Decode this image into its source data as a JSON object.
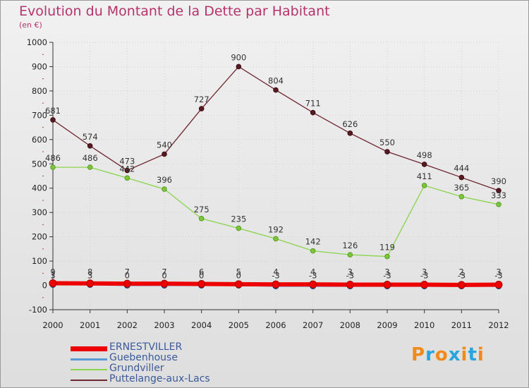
{
  "chart_data": {
    "type": "line",
    "title": "Evolution du Montant de la Dette par Habitant",
    "unit": "(en €)",
    "x": [
      2000,
      2001,
      2002,
      2003,
      2004,
      2005,
      2006,
      2007,
      2008,
      2009,
      2010,
      2011,
      2012
    ],
    "ylim": [
      -100,
      1000
    ],
    "yticks": [
      -100,
      0,
      100,
      200,
      300,
      400,
      500,
      600,
      700,
      800,
      900,
      1000
    ],
    "grid": true,
    "legend_position": "bottom-left",
    "series": [
      {
        "name": "ERNESTVILLER",
        "color": "#ee0000",
        "values": [
          9,
          8,
          7,
          7,
          6,
          5,
          4,
          4,
          3,
          3,
          3,
          2,
          3
        ]
      },
      {
        "name": "Guebenhouse",
        "color": "#5b9bd5",
        "values": [
          3,
          3,
          0,
          0,
          0,
          0,
          -3,
          -3,
          -3,
          -3,
          -3,
          -3,
          -3
        ]
      },
      {
        "name": "Grundviller",
        "color": "#88d44a",
        "values": [
          486,
          486,
          442,
          396,
          275,
          235,
          192,
          142,
          126,
          119,
          411,
          365,
          333
        ]
      },
      {
        "name": "Puttelange-aux-Lacs",
        "color": "#6e2630",
        "values": [
          681,
          574,
          473,
          540,
          727,
          900,
          804,
          711,
          626,
          550,
          498,
          444,
          390
        ]
      }
    ],
    "data_labels": {
      "ERNESTVILLER": [
        "9",
        "8",
        "7",
        "7",
        "6",
        "5",
        "4",
        "4",
        "3",
        "3",
        "3",
        "2",
        "3"
      ],
      "Guebenhouse": [
        "3",
        "3",
        "0",
        "0",
        "0",
        "0",
        "-3",
        "-3",
        "-3",
        "-3",
        "-3",
        "-3",
        "-3"
      ],
      "Grundviller": [
        "486",
        "486",
        "442",
        "396",
        "275",
        "235",
        "192",
        "142",
        "126",
        "119",
        "411",
        "365",
        "333"
      ],
      "Puttelange-aux-Lacs": [
        "681",
        "574",
        "473",
        "540",
        "727",
        "900",
        "804",
        "711",
        "626",
        "550",
        "498",
        "444",
        "390"
      ]
    }
  },
  "logo": {
    "text": "Proxiti",
    "colors": [
      "#f08a1a",
      "#2aa4dc",
      "#f08a1a",
      "#2aa4dc",
      "#f08a1a",
      "#2aa4dc",
      "#f08a1a"
    ]
  }
}
